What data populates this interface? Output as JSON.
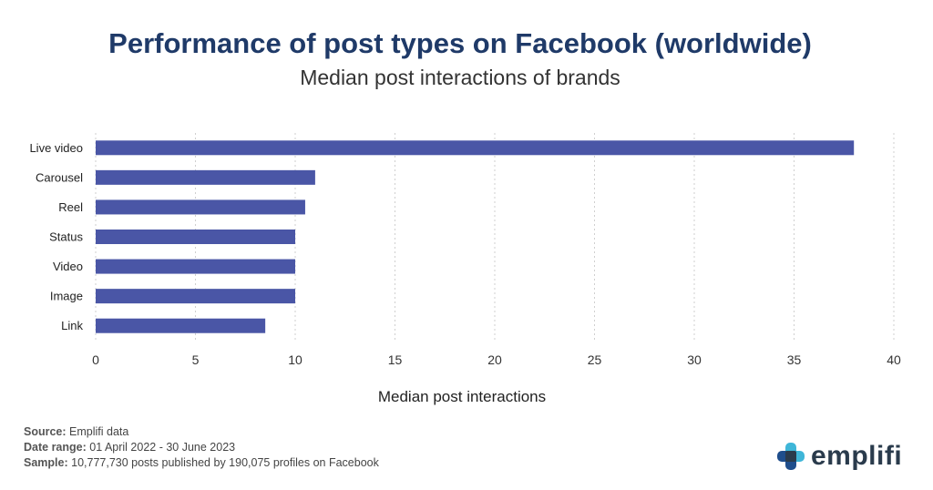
{
  "chart_data": {
    "type": "bar",
    "orientation": "horizontal",
    "title": "Performance of post types on Facebook (worldwide)",
    "subtitle": "Median post interactions of brands",
    "xlabel": "Median post interactions",
    "ylabel": "",
    "categories": [
      "Live video",
      "Carousel",
      "Reel",
      "Status",
      "Video",
      "Image",
      "Link"
    ],
    "values": [
      38,
      11,
      10.5,
      10,
      10,
      10,
      8.5
    ],
    "xlim": [
      0,
      40
    ],
    "xticks": [
      "0",
      "5",
      "10",
      "15",
      "20",
      "25",
      "30",
      "35",
      "40"
    ],
    "grid": "vertical dotted",
    "bar_color": "#4a56a6"
  },
  "footer": {
    "source_label": "Source:",
    "source_value": " Emplifi data",
    "date_label": "Date range:",
    "date_value": " 01 April 2022 - 30 June 2023",
    "sample_label": "Sample:",
    "sample_value": " 10,777,730 posts published by 190,075 profiles on Facebook"
  },
  "brand": {
    "name": "emplifi",
    "color": "#2a3b4c",
    "accent_colors": [
      "#3fb6d8",
      "#1f4e8c",
      "#2a3b4c"
    ]
  }
}
